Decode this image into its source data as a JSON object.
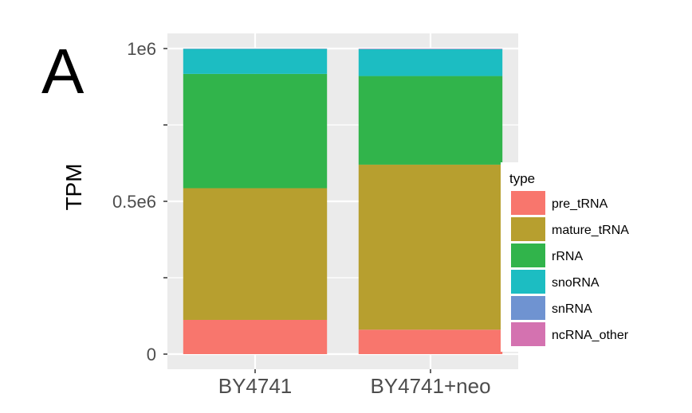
{
  "panel_label": "A",
  "chart_data": {
    "type": "bar",
    "stacked": true,
    "ylabel": "TPM",
    "xlabel": "",
    "ylim": [
      0,
      1000000
    ],
    "y_ticks": [
      {
        "value": 0,
        "label": "0"
      },
      {
        "value": 500000,
        "label": "0.5e6"
      },
      {
        "value": 1000000,
        "label": "1e6"
      }
    ],
    "categories": [
      "BY4741",
      "BY4741+neo"
    ],
    "legend": {
      "title": "type",
      "position": "right"
    },
    "series": [
      {
        "name": "pre_tRNA",
        "color": "#F8766D",
        "values": [
          112000,
          80000
        ]
      },
      {
        "name": "mature_tRNA",
        "color": "#B79F2F",
        "values": [
          431000,
          540000
        ]
      },
      {
        "name": "rRNA",
        "color": "#31B44B",
        "values": [
          374000,
          290000
        ]
      },
      {
        "name": "snoRNA",
        "color": "#1CBDC2",
        "values": [
          82000,
          88000
        ]
      },
      {
        "name": "snRNA",
        "color": "#6F93D1",
        "values": [
          500,
          1000
        ]
      },
      {
        "name": "ncRNA_other",
        "color": "#D472B0",
        "values": [
          500,
          1000
        ]
      }
    ],
    "grid": true,
    "panel_background": "#EBEBEB"
  }
}
